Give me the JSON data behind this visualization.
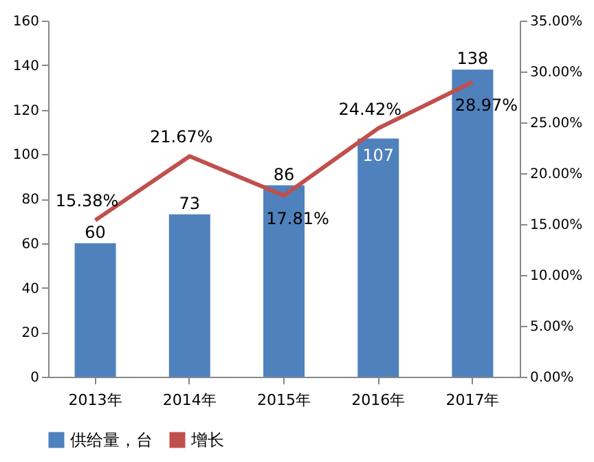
{
  "chart_data": {
    "type": "bar",
    "categories": [
      "2013年",
      "2014年",
      "2015年",
      "2016年",
      "2017年"
    ],
    "series": [
      {
        "name": "供给量，台",
        "color": "#4f81bd",
        "values": [
          60,
          73,
          86,
          107,
          138
        ],
        "value_labels": [
          "60",
          "73",
          "86",
          "107",
          "138"
        ]
      },
      {
        "name": "增长",
        "type": "line",
        "axis": "y2",
        "color": "#c0504d",
        "values": [
          15.38,
          21.67,
          17.81,
          24.42,
          28.97
        ],
        "value_labels": [
          "15.38%",
          "21.67%",
          "17.81%",
          "24.42%",
          "28.97%"
        ]
      }
    ],
    "ylim": [
      0,
      160
    ],
    "yticks": [
      0,
      20,
      40,
      60,
      80,
      100,
      120,
      140,
      160
    ],
    "y2lim": [
      0,
      35
    ],
    "y2ticks": [
      {
        "value": 0,
        "label": "0.00%"
      },
      {
        "value": 5,
        "label": "5.00%"
      },
      {
        "value": 10,
        "label": "10.00%"
      },
      {
        "value": 15,
        "label": "15.00%"
      },
      {
        "value": 20,
        "label": "20.00%"
      },
      {
        "value": 25,
        "label": "25.00%"
      },
      {
        "value": 30,
        "label": "30.00%"
      },
      {
        "value": 35,
        "label": "35.00%"
      }
    ],
    "legend": "bottom",
    "grid": false,
    "marker": "none"
  }
}
